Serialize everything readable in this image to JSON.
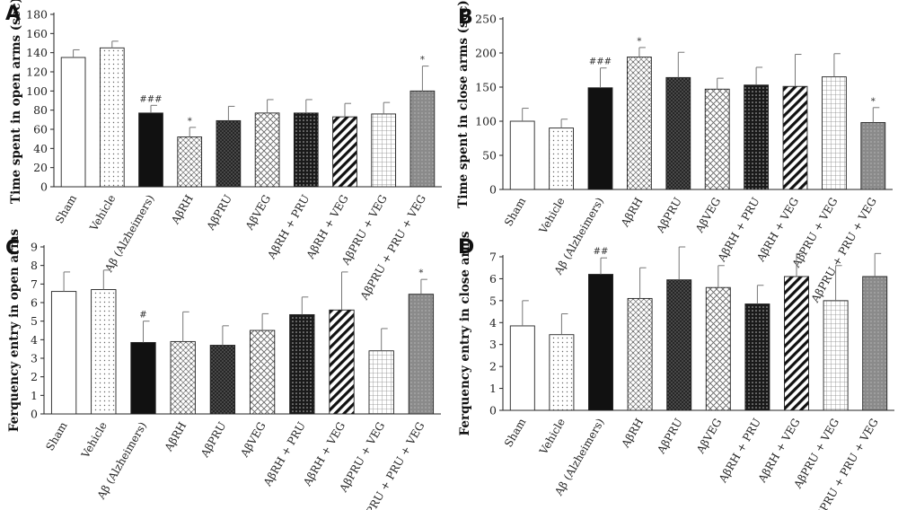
{
  "figure": {
    "categories": [
      "Sham",
      "Vehicle",
      "Aβ (Alzheimers)",
      "AβRH",
      "AβPRU",
      "AβVEG",
      "AβRH + PRU",
      "AβRH + VEG",
      "AβPRU + VEG",
      "AβPRU + PRU + VEG"
    ],
    "bar_patterns": [
      "white",
      "dots",
      "black",
      "diamond-dots",
      "dark-crosshatch",
      "light-crosshatch",
      "black-dots",
      "diagonal",
      "grid",
      "gray-dotted"
    ]
  },
  "chart_data": [
    {
      "panel": "A",
      "type": "bar",
      "ylabel": "Time spent in open arms (sec)",
      "ylim": [
        0,
        180
      ],
      "yticks": [
        0,
        20,
        40,
        60,
        80,
        100,
        120,
        140,
        160,
        180
      ],
      "categories": [
        "Sham",
        "Vehicle",
        "Aβ (Alzheimers)",
        "AβRH",
        "AβPRU",
        "AβVEG",
        "AβRH + PRU",
        "AβRH + VEG",
        "AβPRU + VEG",
        "AβPRU + PRU + VEG"
      ],
      "values": [
        135,
        145,
        77,
        52,
        69,
        77,
        77,
        73,
        76,
        100
      ],
      "errors": [
        8,
        7,
        8,
        10,
        15,
        14,
        14,
        14,
        12,
        26
      ],
      "annotations": [
        "",
        "",
        "###",
        "*",
        "",
        "",
        "",
        "",
        "",
        "*"
      ],
      "grid": false
    },
    {
      "panel": "B",
      "type": "bar",
      "ylabel": "Time spent in close arms (sec)",
      "ylim": [
        0,
        250
      ],
      "yticks": [
        0,
        50,
        100,
        150,
        200,
        250
      ],
      "categories": [
        "Sham",
        "Vehicle",
        "Aβ (Alzheimers)",
        "AβRH",
        "AβPRU",
        "AβVEG",
        "AβRH + PRU",
        "AβRH + VEG",
        "AβPRU + VEG",
        "AβPRU + PRU + VEG"
      ],
      "values": [
        100,
        90,
        149,
        194,
        164,
        147,
        153,
        151,
        165,
        98
      ],
      "errors": [
        19,
        13,
        29,
        14,
        37,
        16,
        26,
        47,
        34,
        22
      ],
      "annotations": [
        "",
        "",
        "###",
        "*",
        "",
        "",
        "",
        "",
        "",
        "*"
      ],
      "grid": false
    },
    {
      "panel": "C",
      "type": "bar",
      "ylabel": "Ferquency entry in open arms",
      "ylim": [
        0,
        9
      ],
      "yticks": [
        0,
        1,
        2,
        3,
        4,
        5,
        6,
        7,
        8,
        9
      ],
      "categories": [
        "Sham",
        "Vehicle",
        "Aβ (Alzheimers)",
        "AβRH",
        "AβPRU",
        "AβVEG",
        "AβRH + PRU",
        "AβRH + VEG",
        "AβPRU + VEG",
        "AβPRU + PRU + VEG"
      ],
      "values": [
        6.6,
        6.7,
        3.85,
        3.9,
        3.7,
        4.5,
        5.35,
        5.6,
        3.4,
        6.45
      ],
      "errors": [
        1.05,
        1.05,
        1.15,
        1.6,
        1.05,
        0.9,
        0.95,
        2.05,
        1.2,
        0.8
      ],
      "annotations": [
        "",
        "",
        "#",
        "",
        "",
        "",
        "",
        "",
        "",
        "*"
      ],
      "grid": false
    },
    {
      "panel": "D",
      "type": "bar",
      "ylabel": "Ferquency entry in close arms",
      "ylim": [
        0,
        7
      ],
      "yticks": [
        0,
        1,
        2,
        3,
        4,
        5,
        6,
        7
      ],
      "categories": [
        "Sham",
        "Vehicle",
        "Aβ (Alzheimers)",
        "AβRH",
        "AβPRU",
        "AβVEG",
        "AβRH + PRU",
        "AβRH + VEG",
        "AβPRU + VEG",
        "AβPRU + PRU + VEG"
      ],
      "values": [
        3.85,
        3.45,
        6.2,
        5.1,
        5.95,
        5.6,
        4.85,
        6.1,
        5.0,
        6.1
      ],
      "errors": [
        1.15,
        0.95,
        0.75,
        1.4,
        1.5,
        1.0,
        0.85,
        1.05,
        1.6,
        1.05
      ],
      "annotations": [
        "",
        "",
        "##",
        "",
        "",
        "",
        "",
        "",
        "",
        ""
      ],
      "grid": false
    }
  ]
}
